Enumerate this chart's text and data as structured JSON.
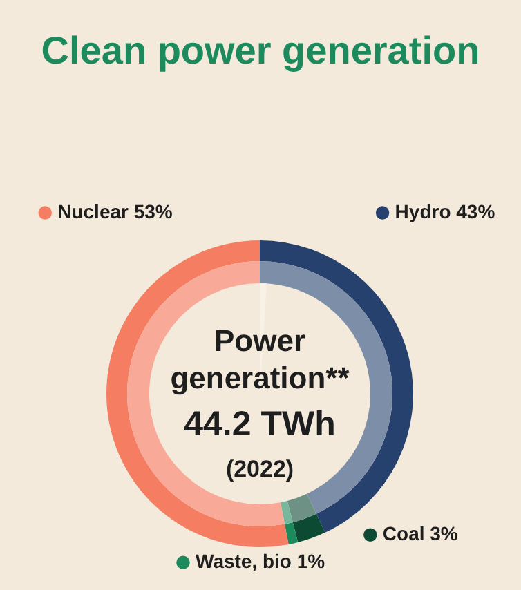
{
  "chart_data": {
    "type": "donut",
    "title": "Clean power generation",
    "categories": [
      "Hydro",
      "Coal",
      "Waste, bio",
      "Nuclear"
    ],
    "series": [
      {
        "values": [
          43,
          3,
          1,
          53
        ],
        "colors": [
          "#27416e",
          "#0c4a34",
          "#1c8a5c",
          "#f47d62"
        ]
      },
      {
        "values": [
          43,
          3,
          1,
          53
        ],
        "colors": [
          "#7d8ea8",
          "#6d9285",
          "#77b89d",
          "#f8a997"
        ]
      }
    ],
    "value_labels": [
      "43%",
      "3%",
      "1%",
      "53%"
    ],
    "annotations": [
      "Power generation**",
      "44.2 TWh",
      "(2022)"
    ],
    "legend": false
  }
}
